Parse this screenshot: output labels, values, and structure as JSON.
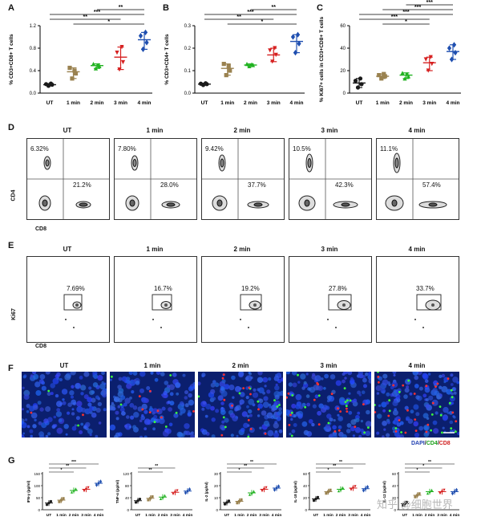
{
  "panels": {
    "A": "A",
    "B": "B",
    "C": "C",
    "D": "D",
    "E": "E",
    "F": "F",
    "G": "G"
  },
  "categories": [
    "UT",
    "1 min",
    "2 min",
    "3 min",
    "4 min"
  ],
  "colors": {
    "ut": "#1a1a1a",
    "m1": "#9a8250",
    "m2": "#22b322",
    "m3": "#d62020",
    "m4": "#1f4fb0",
    "micro_bg": "#0b1f6e"
  },
  "chart_data": [
    {
      "type": "scatter",
      "id": "A",
      "title": "",
      "ylabel": "% CD3+CD8+ T cells",
      "ylim": [
        0,
        1.2
      ],
      "yticks": [
        "0.0",
        "0.4",
        "0.8",
        "1.2"
      ],
      "series": [
        {
          "name": "UT",
          "mean": 0.15,
          "points": [
            0.13,
            0.15,
            0.16,
            0.17
          ]
        },
        {
          "name": "1 min",
          "mean": 0.38,
          "points": [
            0.26,
            0.35,
            0.45,
            0.4
          ]
        },
        {
          "name": "2 min",
          "mean": 0.49,
          "points": [
            0.44,
            0.48,
            0.52,
            0.5
          ]
        },
        {
          "name": "3 min",
          "mean": 0.64,
          "points": [
            0.42,
            0.55,
            0.72,
            0.82
          ]
        },
        {
          "name": "4 min",
          "mean": 0.95,
          "points": [
            0.78,
            0.9,
            1.02,
            1.08
          ]
        }
      ],
      "sig": [
        "*",
        "**",
        "***",
        "**"
      ]
    },
    {
      "type": "scatter",
      "id": "B",
      "ylabel": "% CD3+CD4+ T cells",
      "ylim": [
        0,
        0.3
      ],
      "yticks": [
        "0.0",
        "0.1",
        "0.2",
        "0.3"
      ],
      "series": [
        {
          "name": "UT",
          "mean": 0.04,
          "points": [
            0.036,
            0.04,
            0.042,
            0.044
          ]
        },
        {
          "name": "1 min",
          "mean": 0.11,
          "points": [
            0.08,
            0.1,
            0.13,
            0.12
          ]
        },
        {
          "name": "2 min",
          "mean": 0.125,
          "points": [
            0.12,
            0.125,
            0.13,
            0.128
          ]
        },
        {
          "name": "3 min",
          "mean": 0.17,
          "points": [
            0.14,
            0.17,
            0.19,
            0.2
          ]
        },
        {
          "name": "4 min",
          "mean": 0.23,
          "points": [
            0.18,
            0.22,
            0.25,
            0.26
          ]
        }
      ],
      "sig": [
        "*",
        "**",
        "***",
        "**"
      ]
    },
    {
      "type": "scatter",
      "id": "C",
      "ylabel": "% Ki67+ cells in CD3+CD8+ T cells",
      "ylim": [
        0,
        60
      ],
      "yticks": [
        "0",
        "20",
        "40",
        "60"
      ],
      "series": [
        {
          "name": "UT",
          "mean": 9,
          "points": [
            5,
            8,
            11,
            13
          ]
        },
        {
          "name": "1 min",
          "mean": 15,
          "points": [
            13,
            15,
            16,
            17
          ]
        },
        {
          "name": "2 min",
          "mean": 16,
          "points": [
            13,
            15,
            18,
            17
          ]
        },
        {
          "name": "3 min",
          "mean": 27,
          "points": [
            20,
            26,
            30,
            32
          ]
        },
        {
          "name": "4 min",
          "mean": 37,
          "points": [
            30,
            36,
            40,
            43
          ]
        }
      ],
      "sig": [
        "*",
        "***",
        "***",
        "***",
        "***"
      ]
    }
  ],
  "panel_d": {
    "titles": [
      "UT",
      "1 min",
      "2 min",
      "3 min",
      "4 min"
    ],
    "upper_left": [
      "6.32%",
      "7.80%",
      "9.42%",
      "10.5%",
      "11.1%"
    ],
    "lower_right": [
      "21.2%",
      "28.0%",
      "37.7%",
      "42.3%",
      "57.4%"
    ],
    "ylabel": "CD4",
    "xlabel": "CD8"
  },
  "panel_e": {
    "titles": [
      "UT",
      "1 min",
      "2 min",
      "3 min",
      "4 min"
    ],
    "gate": [
      "7.69%",
      "16.7%",
      "19.2%",
      "27.8%",
      "33.7%"
    ],
    "ylabel": "Ki67",
    "xlabel": "CD8"
  },
  "panel_f": {
    "titles": [
      "UT",
      "1 min",
      "2 min",
      "3 min",
      "4 min"
    ],
    "legend_dapi": "DAPI",
    "legend_cd4": "CD4",
    "legend_cd8": "CD8",
    "sep": "/"
  },
  "panel_g": {
    "categories": [
      "UT",
      "1 min",
      "2 min",
      "3 min",
      "4 min"
    ],
    "charts": [
      {
        "ylabel": "IFN-γ (pg/ml)",
        "yticks": [
          "0",
          "50",
          "100",
          "150"
        ],
        "ymax": 150,
        "means": [
          28,
          40,
          80,
          85,
          110
        ],
        "sig": [
          "*",
          "**",
          "***"
        ]
      },
      {
        "ylabel": "TNF-α (pg/ml)",
        "yticks": [
          "0",
          "40",
          "80",
          "120"
        ],
        "ymax": 120,
        "means": [
          30,
          38,
          42,
          58,
          62
        ],
        "sig": [
          "**",
          "**"
        ]
      },
      {
        "ylabel": "IL-2 (pg/ml)",
        "yticks": [
          "0",
          "10",
          "20",
          "30"
        ],
        "ymax": 30,
        "means": [
          6,
          7,
          14,
          17,
          18
        ],
        "sig": [
          "*",
          "**",
          "**"
        ]
      },
      {
        "ylabel": "IL-18 (pg/ml)",
        "yticks": [
          "0",
          "20",
          "40",
          "60"
        ],
        "ymax": 60,
        "means": [
          18,
          30,
          34,
          36,
          35
        ],
        "sig": [
          "*",
          "**",
          "**"
        ]
      },
      {
        "ylabel": "IL-12 (pg/ml)",
        "yticks": [
          "0",
          "20",
          "40",
          "60"
        ],
        "ymax": 60,
        "means": [
          10,
          24,
          30,
          30,
          30
        ],
        "sig": [
          "*",
          "*",
          "**"
        ]
      }
    ]
  },
  "watermark": "知乎 @细胞世界"
}
